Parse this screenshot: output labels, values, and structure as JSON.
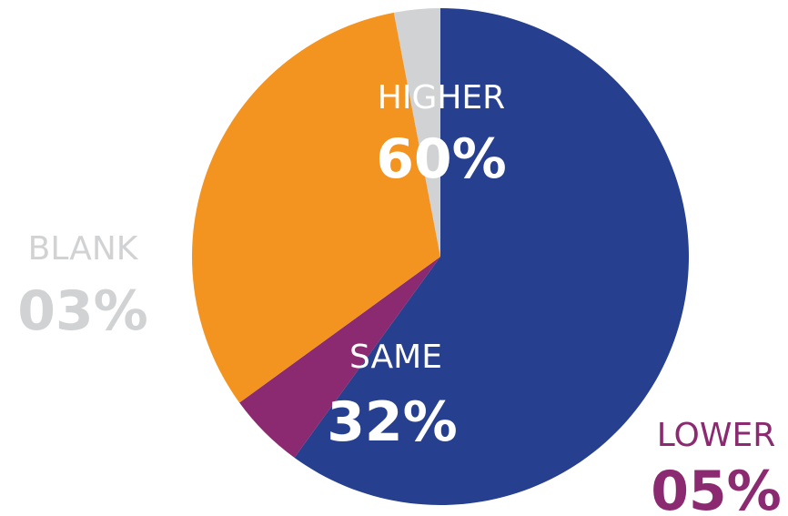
{
  "chart_data": {
    "type": "pie",
    "slices": [
      {
        "label": "HIGHER",
        "value": 60,
        "value_label": "60%",
        "color": "#263F8E",
        "text_color": "#ffffff"
      },
      {
        "label": "LOWER",
        "value": 5,
        "value_label": "05%",
        "color": "#8B2A70",
        "text_color": "#8B2A70"
      },
      {
        "label": "SAME",
        "value": 32,
        "value_label": "32%",
        "color": "#F39320",
        "text_color": "#ffffff"
      },
      {
        "label": "BLANK",
        "value": 3,
        "value_label": "03%",
        "color": "#D1D2D3",
        "text_color": "#D1D2D3"
      }
    ]
  }
}
